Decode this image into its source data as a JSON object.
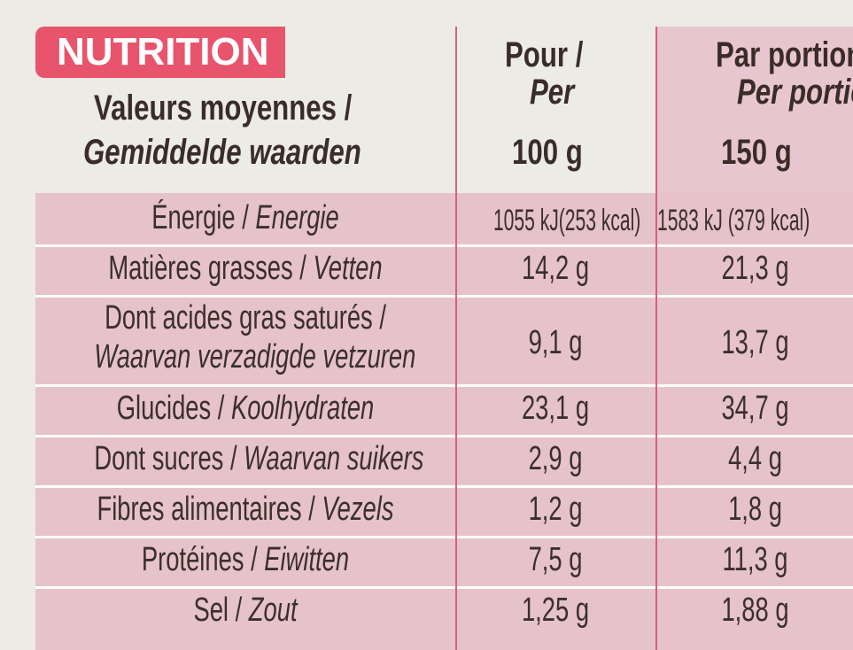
{
  "nutrition_label": "NUTRITION",
  "header": {
    "label_fr": "Valeurs moyennes /",
    "label_nl": "Gemiddelde waarden",
    "col1_fr": "Pour /",
    "col1_nl": "Per",
    "col1_qty": "100 g",
    "col2_fr": "Par portion /",
    "col2_nl": "Per portie",
    "col2_qty": "150 g"
  },
  "rows": [
    {
      "fr": "Énergie /",
      "nl": "Energie",
      "per100": "1055 kJ(253 kcal)",
      "per150": "1583 kJ (379 kcal)"
    },
    {
      "fr": "Matières grasses /",
      "nl": "Vetten",
      "per100": "14,2 g",
      "per150": "21,3 g"
    },
    {
      "fr": "Dont acides gras saturés /",
      "nl": "Waarvan verzadigde vetzuren",
      "per100": "9,1 g",
      "per150": "13,7 g"
    },
    {
      "fr": "Glucides /",
      "nl": "Koolhydraten",
      "per100": "23,1 g",
      "per150": "34,7 g"
    },
    {
      "fr": "Dont sucres /",
      "nl": "Waarvan suikers",
      "per100": "2,9 g",
      "per150": "4,4 g"
    },
    {
      "fr": "Fibres alimentaires /",
      "nl": "Vezels",
      "per100": "1,2 g",
      "per150": "1,8 g"
    },
    {
      "fr": "Protéines /",
      "nl": "Eiwitten",
      "per100": "7,5 g",
      "per150": "11,3 g"
    },
    {
      "fr": "Sel /",
      "nl": "Zout",
      "per100": "1,25 g",
      "per150": "1,88 g"
    }
  ]
}
